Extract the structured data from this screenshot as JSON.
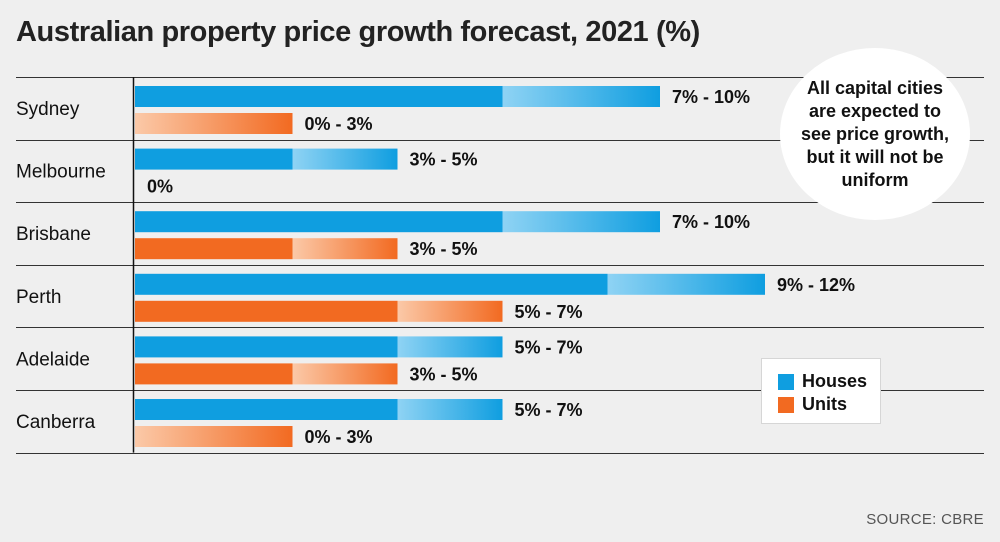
{
  "title": "Australian property price growth forecast, 2021 (%)",
  "callout": "All capital cities are expected to see price growth, but it will not be uniform",
  "source": "SOURCE: CBRE",
  "colors": {
    "houses": "#0f9ee0",
    "houses_light": "#8fd3f4",
    "units": "#f26a21",
    "units_light": "#fbc9a8",
    "background": "#efefef"
  },
  "chart_data": {
    "type": "bar",
    "orientation": "horizontal",
    "title": "Australian property price growth forecast, 2021 (%)",
    "xlim": [
      0,
      12
    ],
    "grid": false,
    "legend_position": "bottom-right",
    "categories": [
      "Sydney",
      "Melbourne",
      "Brisbane",
      "Perth",
      "Adelaide",
      "Canberra"
    ],
    "series": [
      {
        "name": "Houses",
        "color": "#0f9ee0",
        "ranges": [
          [
            7,
            10
          ],
          [
            3,
            5
          ],
          [
            7,
            10
          ],
          [
            9,
            12
          ],
          [
            5,
            7
          ],
          [
            5,
            7
          ]
        ],
        "labels": [
          "7% - 10%",
          "3% - 5%",
          "7% - 10%",
          "9% - 12%",
          "5% - 7%",
          "5% - 7%"
        ]
      },
      {
        "name": "Units",
        "color": "#f26a21",
        "ranges": [
          [
            0,
            3
          ],
          [
            0,
            0
          ],
          [
            3,
            5
          ],
          [
            5,
            7
          ],
          [
            3,
            5
          ],
          [
            0,
            3
          ]
        ],
        "labels": [
          "0% - 3%",
          "0%",
          "3% - 5%",
          "5% - 7%",
          "3% - 5%",
          "0% - 3%"
        ]
      }
    ]
  }
}
